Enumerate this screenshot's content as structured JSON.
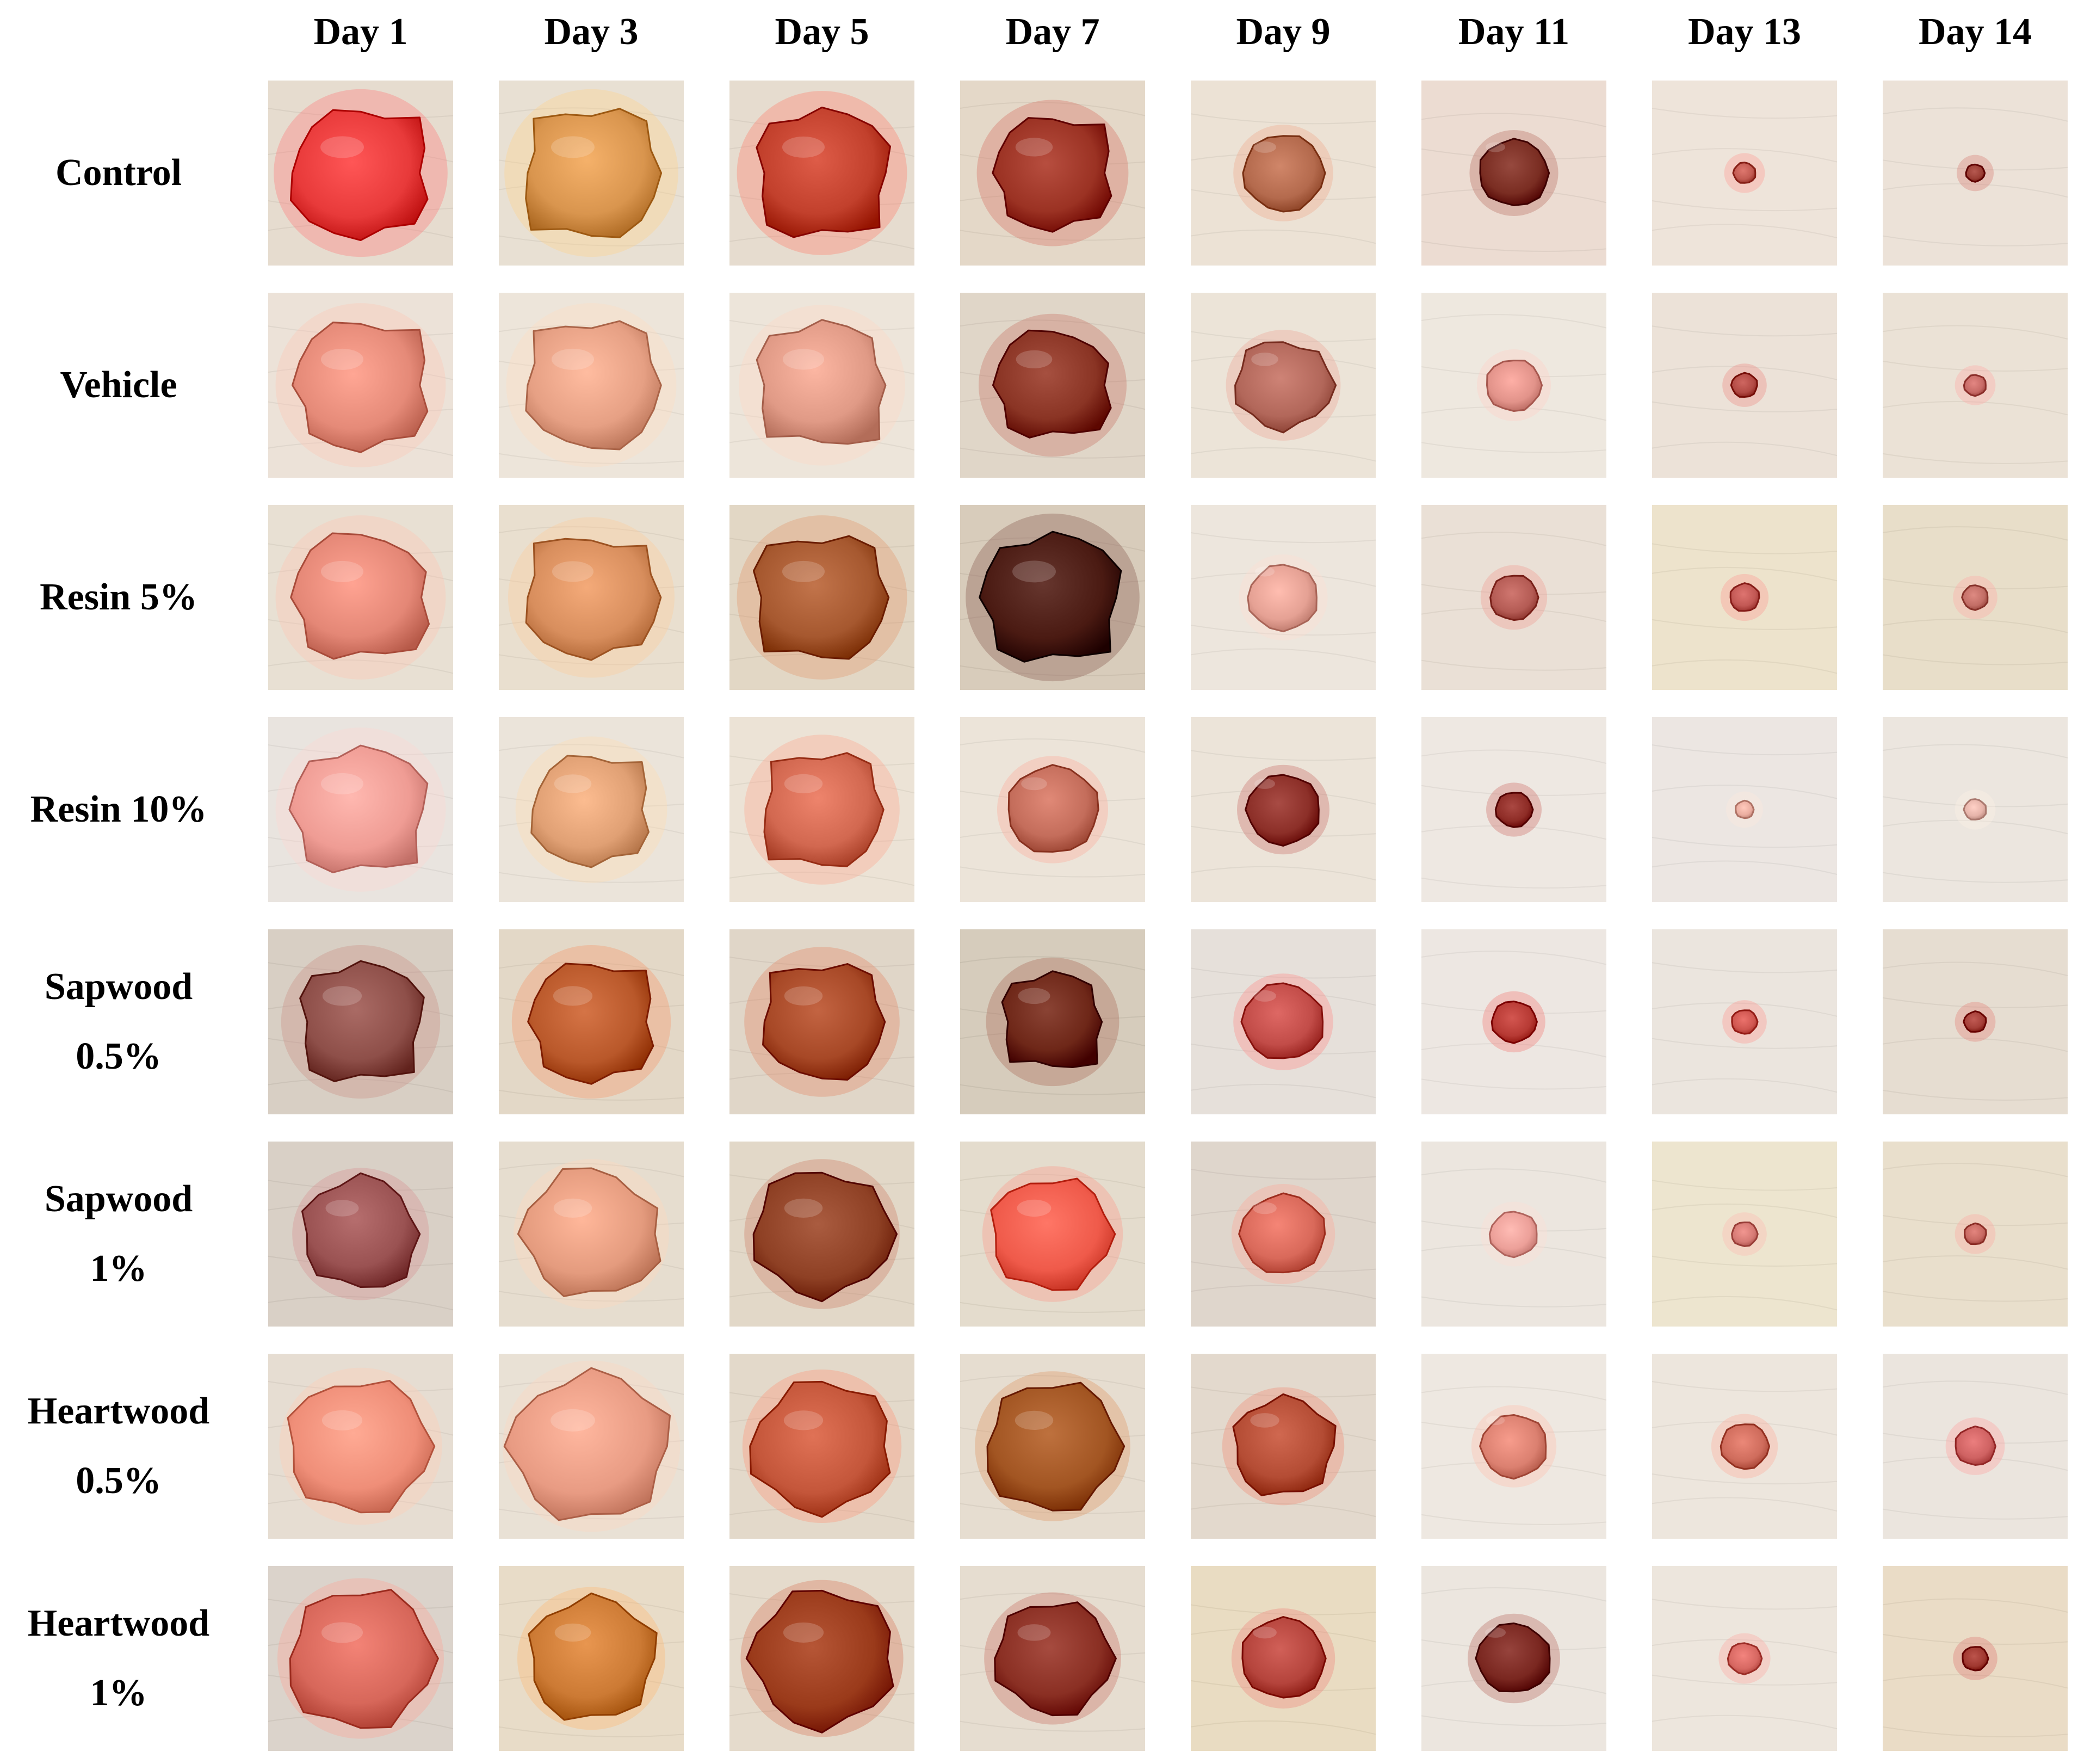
{
  "figure": {
    "days": [
      "Day 1",
      "Day 3",
      "Day 5",
      "Day 7",
      "Day 9",
      "Day 11",
      "Day 13",
      "Day 14"
    ],
    "groups": [
      {
        "lines": [
          "Control"
        ]
      },
      {
        "lines": [
          "Vehicle"
        ]
      },
      {
        "lines": [
          "Resin 5%"
        ]
      },
      {
        "lines": [
          "Resin 10%"
        ]
      },
      {
        "lines": [
          "Sapwood",
          "0.5%"
        ]
      },
      {
        "lines": [
          "Sapwood",
          "1%"
        ]
      },
      {
        "lines": [
          "Heartwood",
          "0.5%"
        ]
      },
      {
        "lines": [
          "Heartwood",
          "1%"
        ]
      }
    ],
    "wound_sizes": [
      [
        0.84,
        0.84,
        0.82,
        0.72,
        0.44,
        0.38,
        0.12,
        0.1
      ],
      [
        0.82,
        0.82,
        0.8,
        0.7,
        0.52,
        0.3,
        0.14,
        0.12
      ],
      [
        0.82,
        0.8,
        0.82,
        0.84,
        0.38,
        0.26,
        0.16,
        0.14
      ],
      [
        0.82,
        0.72,
        0.74,
        0.5,
        0.4,
        0.2,
        0.1,
        0.12
      ],
      [
        0.76,
        0.76,
        0.74,
        0.62,
        0.44,
        0.24,
        0.14,
        0.12
      ],
      [
        0.64,
        0.74,
        0.74,
        0.66,
        0.46,
        0.26,
        0.14,
        0.12
      ],
      [
        0.78,
        0.86,
        0.76,
        0.74,
        0.56,
        0.36,
        0.26,
        0.22
      ],
      [
        0.8,
        0.7,
        0.78,
        0.64,
        0.46,
        0.4,
        0.18,
        0.14
      ]
    ],
    "wound_colors": [
      [
        "#e83a3a",
        "#d9954e",
        "#c2402c",
        "#9b3223",
        "#b46a4d",
        "#7a2d22",
        "#c25b52",
        "#9a3d34"
      ],
      [
        "#e58a78",
        "#e6a084",
        "#e09a86",
        "#8a3424",
        "#b2675a",
        "#e2938a",
        "#b24a44",
        "#c76a66"
      ],
      [
        "#e48776",
        "#d88e5d",
        "#a6582f",
        "#4a1a12",
        "#e5a194",
        "#b45b54",
        "#c25854",
        "#c26e66"
      ],
      [
        "#ef9c94",
        "#e0a074",
        "#d26850",
        "#c46d5b",
        "#8c2f28",
        "#8e2c26",
        "#eaada0",
        "#e6b4aa"
      ],
      [
        "#8e4f49",
        "#b9582a",
        "#a74826",
        "#6e2718",
        "#c24c48",
        "#b73a34",
        "#cf5650",
        "#a53f38"
      ],
      [
        "#9a5252",
        "#e49b7e",
        "#8e4024",
        "#ef5a4a",
        "#d9695a",
        "#eca099",
        "#d57a74",
        "#c76962"
      ],
      [
        "#ef8e78",
        "#e89b83",
        "#c4563a",
        "#a25522",
        "#b44c34",
        "#db8070",
        "#cf6c5c",
        "#cf6262"
      ],
      [
        "#d7675a",
        "#cc7a34",
        "#9a3a1a",
        "#8a2f23",
        "#b5443c",
        "#7a2720",
        "#d76862",
        "#a03830"
      ]
    ],
    "skin_colors": [
      [
        "#e6dccf",
        "#e8e0d3",
        "#e6dccf",
        "#e4d8c8",
        "#ece2d5",
        "#ecdcd2",
        "#eee4da",
        "#ece2d8"
      ],
      [
        "#ece2d8",
        "#ede5da",
        "#ede5da",
        "#e0d6c8",
        "#ece4d8",
        "#eee8df",
        "#ece2d8",
        "#ebe2d6"
      ],
      [
        "#e8e0d3",
        "#e9dfcf",
        "#e2d7c5",
        "#d8ccbb",
        "#ede6dd",
        "#eae0d6",
        "#ede3cc",
        "#e8dec9"
      ],
      [
        "#e9e4df",
        "#ebe4da",
        "#ece3d6",
        "#ece4d9",
        "#ece4d9",
        "#eee8e2",
        "#ece6e2",
        "#ece6df"
      ],
      [
        "#d8cfc4",
        "#e3d8c7",
        "#e0d6c8",
        "#d6ccbc",
        "#e6e0da",
        "#ede7e2",
        "#ebe5de",
        "#e6ddd1"
      ],
      [
        "#d9d0c6",
        "#e6ddcf",
        "#e2d8c8",
        "#e4dccd",
        "#dfd6cc",
        "#ece6df",
        "#ede5cf",
        "#e9dfcc"
      ],
      [
        "#e6ddd2",
        "#e9e1d5",
        "#e3d9ca",
        "#e6ddd0",
        "#e3d9cd",
        "#eee8e1",
        "#ede6dd",
        "#ebe5de"
      ],
      [
        "#dbd3cb",
        "#e8dcc8",
        "#e5dbcc",
        "#e6ddd0",
        "#e9dcc2",
        "#ece6df",
        "#ede6dd",
        "#eadcc6"
      ]
    ]
  }
}
